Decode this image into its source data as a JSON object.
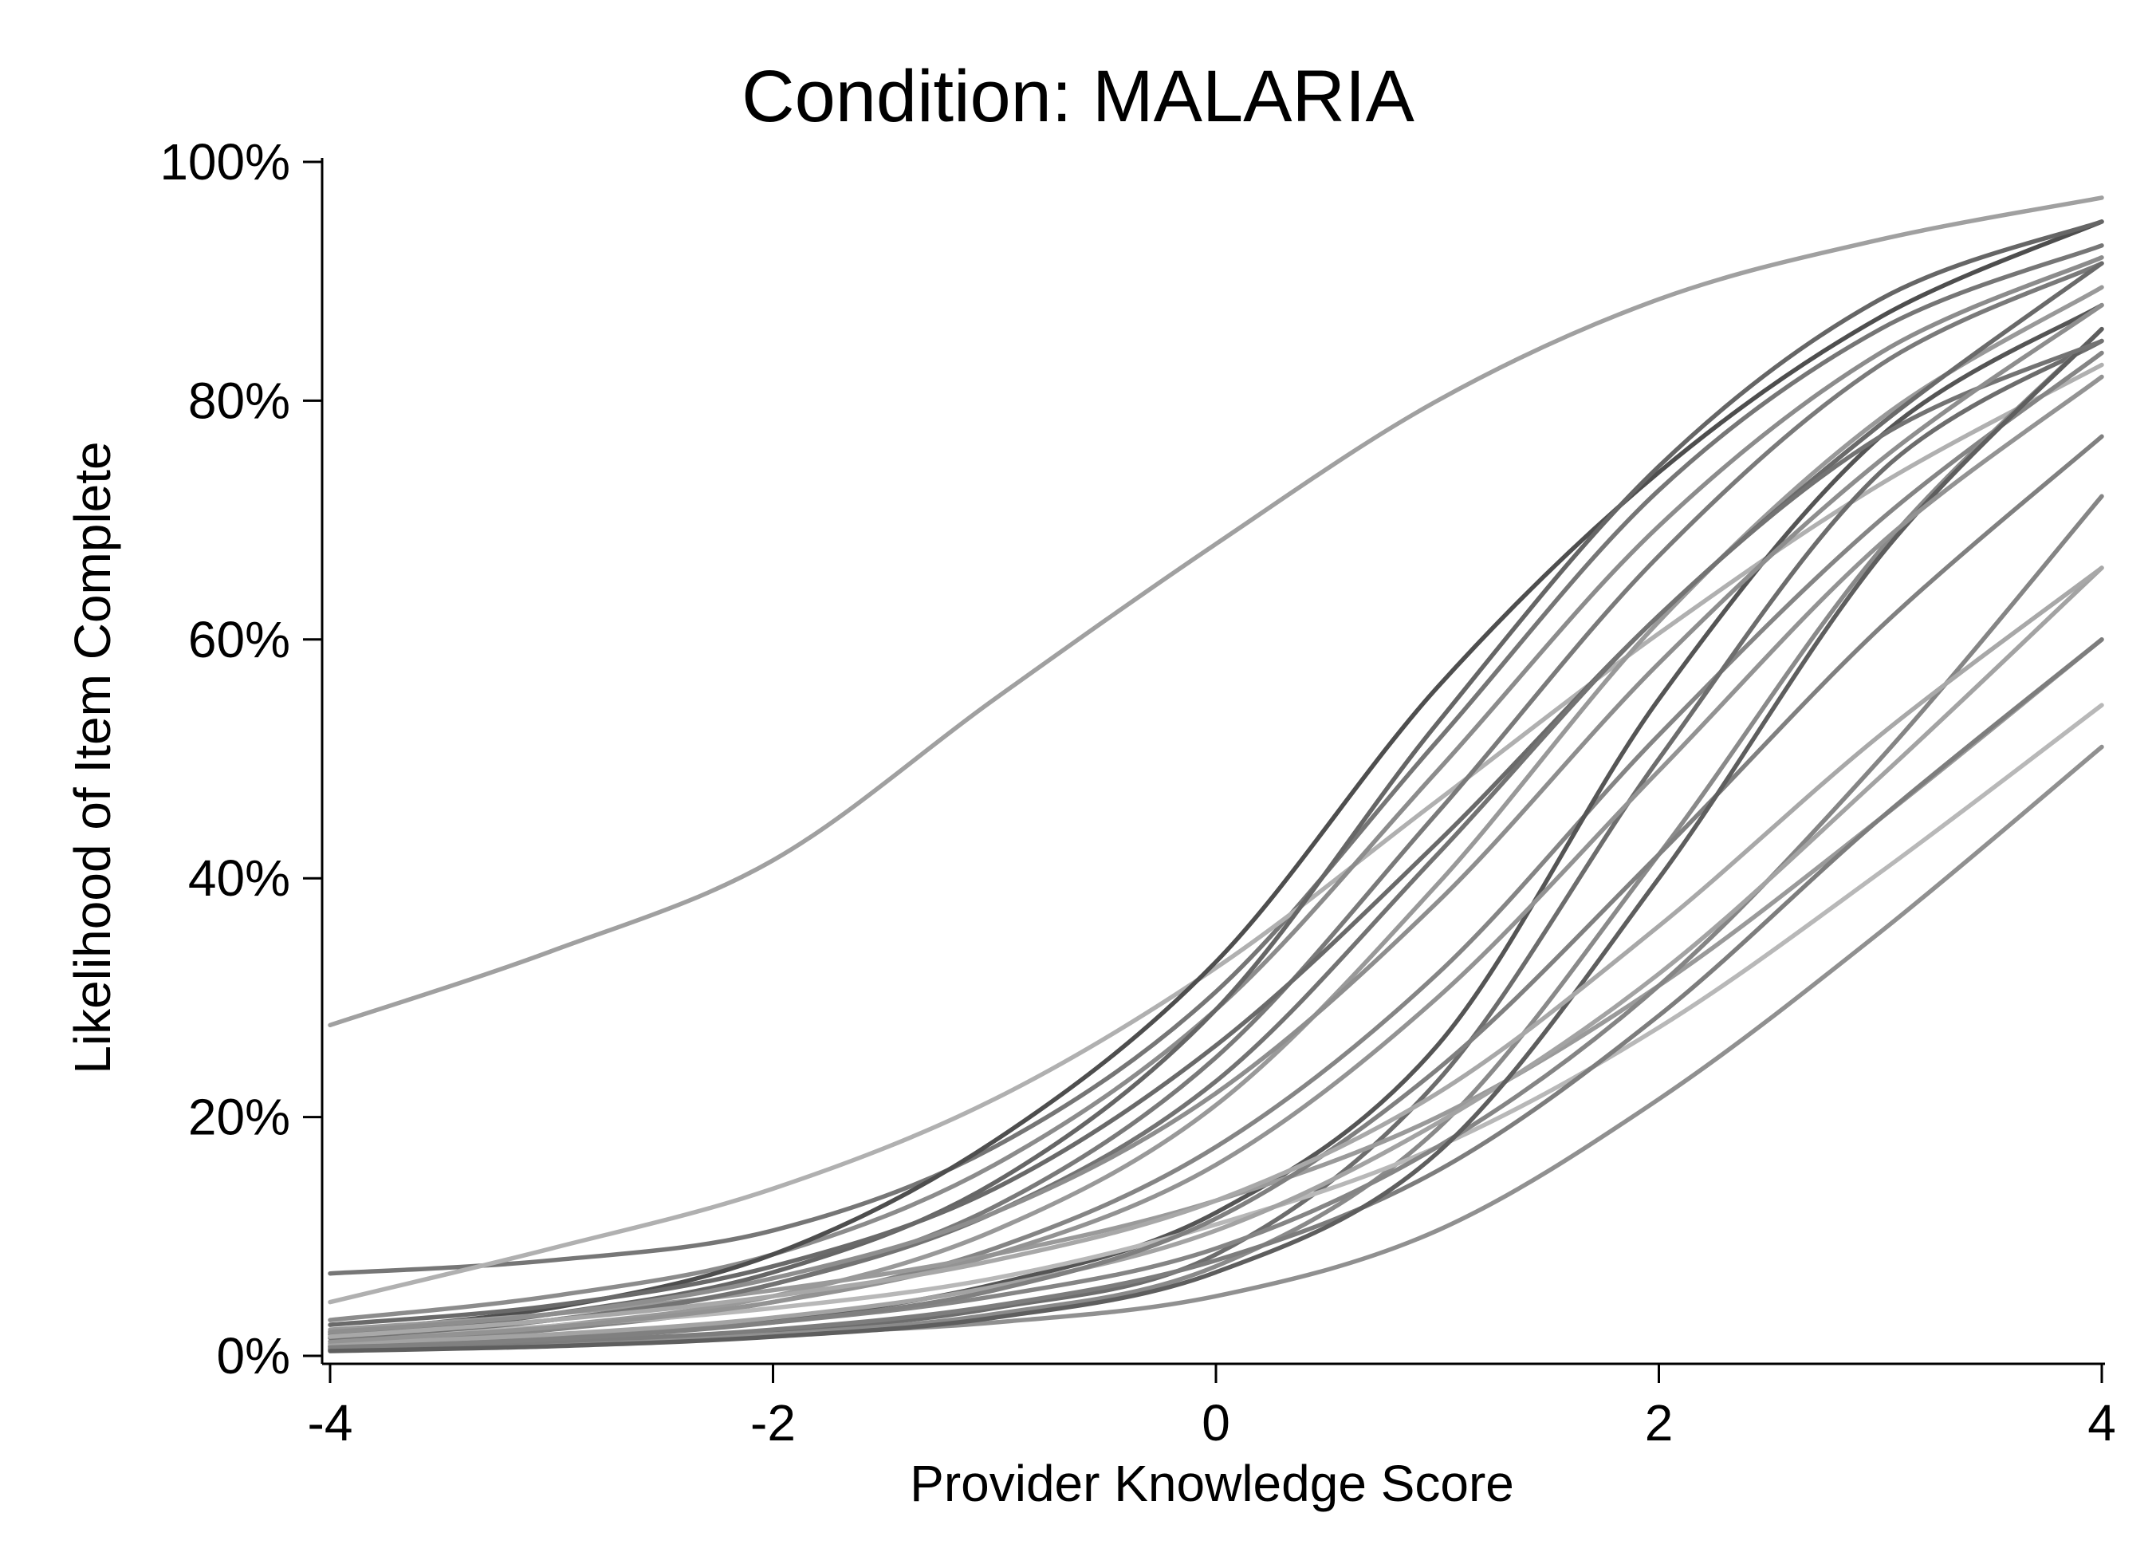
{
  "chart_data": {
    "type": "line",
    "title": "Condition: MALARIA",
    "xlabel": "Provider Knowledge Score",
    "ylabel": "Likelihood of Item Complete",
    "xlim": [
      -4,
      4
    ],
    "ylim": [
      0,
      100
    ],
    "xticks": [
      -4,
      -2,
      0,
      2,
      4
    ],
    "xtick_labels": [
      "-4",
      "-2",
      "0",
      "2",
      "4"
    ],
    "yticks": [
      0,
      20,
      40,
      60,
      80,
      100
    ],
    "ytick_labels": [
      "0%",
      "20%",
      "40%",
      "60%",
      "80%",
      "100%"
    ],
    "grid": false,
    "legend": "none",
    "x": [
      -4,
      -3,
      -2,
      -1,
      0,
      1,
      2,
      3,
      4
    ],
    "series": [
      {
        "color": "#a0a0a0",
        "values": [
          27.7,
          33.9,
          41.5,
          55.0,
          68.0,
          80.0,
          88.5,
          93.5,
          97.0
        ]
      },
      {
        "color": "#767676",
        "values": [
          6.9,
          8.0,
          10.5,
          17.5,
          30.5,
          51.5,
          72.5,
          86.0,
          93.0
        ]
      },
      {
        "color": "#b0b0b0",
        "values": [
          4.5,
          9.0,
          14.0,
          21.5,
          32.5,
          46.5,
          60.5,
          73.0,
          83.0
        ]
      },
      {
        "color": "#8c8c8c",
        "values": [
          3.0,
          5.0,
          8.5,
          16.0,
          29.0,
          49.0,
          69.5,
          84.0,
          92.0
        ]
      },
      {
        "color": "#4e4e4e",
        "values": [
          2.0,
          4.0,
          8.5,
          18.0,
          33.0,
          56.0,
          74.0,
          87.0,
          95.0
        ]
      },
      {
        "color": "#666666",
        "values": [
          1.5,
          3.5,
          7.0,
          14.5,
          29.0,
          53.0,
          74.5,
          88.5,
          95.0
        ]
      },
      {
        "color": "#7a7a7a",
        "values": [
          1.8,
          3.0,
          6.0,
          12.5,
          25.0,
          45.5,
          67.0,
          83.0,
          91.5
        ]
      },
      {
        "color": "#999999",
        "values": [
          1.2,
          2.5,
          5.0,
          10.5,
          21.0,
          39.5,
          61.5,
          78.5,
          89.5
        ]
      },
      {
        "color": "#858585",
        "values": [
          1.0,
          2.2,
          4.5,
          9.0,
          17.5,
          32.0,
          52.0,
          70.0,
          84.0
        ]
      },
      {
        "color": "#555555",
        "values": [
          0.8,
          1.5,
          3.0,
          6.0,
          12.0,
          26.0,
          55.0,
          77.0,
          88.0
        ]
      },
      {
        "color": "#6d6d6d",
        "values": [
          0.5,
          1.0,
          2.0,
          4.0,
          8.5,
          23.0,
          50.0,
          74.0,
          85.0
        ]
      },
      {
        "color": "#8a8a8a",
        "values": [
          0.5,
          0.9,
          1.8,
          3.5,
          7.5,
          19.0,
          42.0,
          67.5,
          86.0
        ]
      },
      {
        "color": "#9a9a9a",
        "values": [
          2.2,
          3.5,
          5.5,
          8.5,
          13.0,
          20.0,
          31.0,
          45.0,
          60.0
        ]
      },
      {
        "color": "#b8b8b8",
        "values": [
          1.5,
          2.5,
          4.0,
          6.5,
          11.0,
          17.5,
          27.5,
          40.5,
          54.5
        ]
      },
      {
        "color": "#909090",
        "values": [
          0.5,
          1.0,
          1.8,
          2.8,
          5.0,
          10.5,
          21.5,
          35.5,
          51.0
        ]
      },
      {
        "color": "#858585",
        "values": [
          0.8,
          1.5,
          2.8,
          5.0,
          9.0,
          17.5,
          31.0,
          50.0,
          72.0
        ]
      },
      {
        "color": "#7d7d7d",
        "values": [
          0.6,
          1.2,
          2.2,
          4.2,
          8.0,
          15.5,
          28.5,
          45.0,
          60.0
        ]
      },
      {
        "color": "#a3a3a3",
        "values": [
          1.0,
          1.8,
          3.2,
          5.8,
          10.5,
          19.5,
          32.0,
          48.5,
          66.0
        ]
      },
      {
        "color": "#808080",
        "values": [
          0.7,
          1.4,
          2.8,
          5.5,
          11.5,
          24.0,
          42.0,
          61.0,
          77.0
        ]
      },
      {
        "color": "#6a6a6a",
        "values": [
          2.6,
          4.2,
          7.5,
          14.0,
          26.0,
          43.0,
          62.0,
          78.0,
          91.5
        ]
      },
      {
        "color": "#5e5e5e",
        "values": [
          0.4,
          0.8,
          1.6,
          3.2,
          7.0,
          17.0,
          40.0,
          67.0,
          86.0
        ]
      },
      {
        "color": "#939393",
        "values": [
          1.2,
          2.4,
          4.5,
          8.5,
          16.0,
          30.0,
          49.0,
          68.0,
          82.0
        ]
      },
      {
        "color": "#737373",
        "values": [
          1.5,
          3.0,
          6.0,
          12.0,
          23.0,
          42.0,
          62.0,
          77.0,
          85.0
        ]
      },
      {
        "color": "#a8a8a8",
        "values": [
          1.6,
          3.0,
          5.0,
          8.0,
          13.0,
          22.0,
          36.0,
          52.0,
          66.0
        ]
      },
      {
        "color": "#8e8e8e",
        "values": [
          2.0,
          3.5,
          6.5,
          12.0,
          22.0,
          38.0,
          58.0,
          75.0,
          88.0
        ]
      }
    ]
  }
}
